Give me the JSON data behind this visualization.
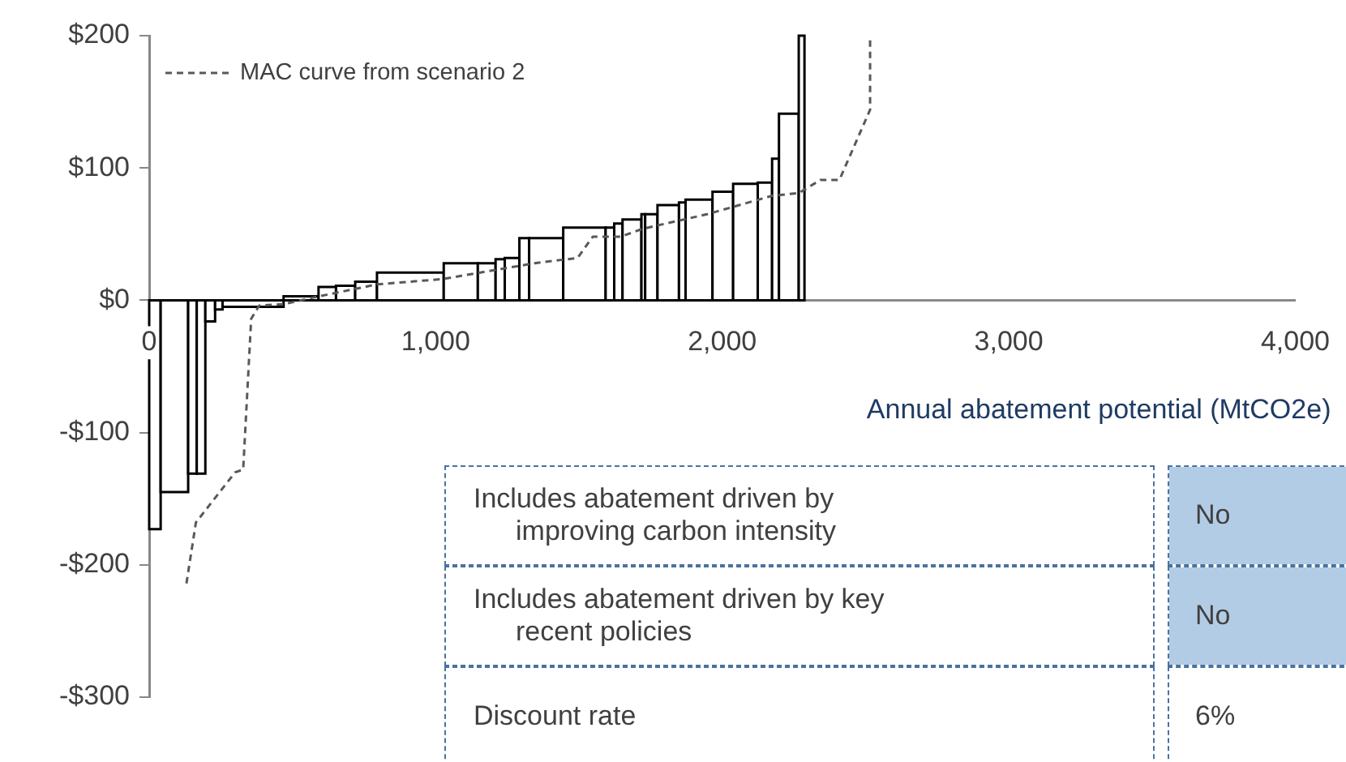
{
  "chart_data": {
    "type": "histogram",
    "xlabel": "Annual abatement potential (MtCO2e)",
    "xlim": [
      0,
      4000
    ],
    "xticks": [
      0,
      {
        "value": 1000,
        "label": "1,000"
      },
      {
        "value": 2000,
        "label": "2,000"
      },
      {
        "value": 3000,
        "label": "3,000"
      },
      {
        "value": 4000,
        "label": "4,000"
      }
    ],
    "ylim": [
      -300,
      200
    ],
    "yticks": [
      {
        "value": -300,
        "label": "-$300"
      },
      {
        "value": -200,
        "label": "-$200"
      },
      {
        "value": -100,
        "label": "-$100"
      },
      {
        "value": 0,
        "label": "$0"
      },
      {
        "value": 100,
        "label": "$100"
      },
      {
        "value": 200,
        "label": "$200"
      }
    ],
    "grid": false,
    "legend": "top left",
    "series": [
      {
        "type": "histogram",
        "color": "#000000",
        "bins": [
          0,
          40,
          136,
          166,
          196,
          230,
          256,
          469,
          591,
          652,
          719,
          795,
          1028,
          1147,
          1209,
          1241,
          1292,
          1326,
          1445,
          1593,
          1623,
          1652,
          1718,
          1731,
          1774,
          1849,
          1872,
          1966,
          2038,
          2124,
          2174,
          2198,
          2267,
          2287
        ],
        "values": [
          -173,
          -145,
          -131,
          -131,
          -16,
          -7,
          -5,
          3,
          10,
          11,
          14,
          21,
          28,
          28,
          31,
          32,
          47,
          47,
          55,
          55,
          58,
          61,
          65,
          65,
          72,
          74,
          76,
          82,
          88,
          89,
          107,
          141,
          200
        ]
      },
      {
        "type": "line",
        "name": "MAC curve from scenario 2",
        "color": "#595959",
        "line_style": "dashed",
        "x": [
          130,
          163,
          300,
          328,
          356,
          384,
          469,
          571,
          795,
          1023,
          1345,
          1495,
          1548,
          1645,
          1722,
          1947,
          2174,
          2267,
          2343,
          2409,
          2516,
          2516
        ],
        "values": [
          -214,
          -168,
          -130,
          -128,
          -14,
          -4,
          -3,
          2,
          12,
          16,
          28,
          32,
          48,
          48,
          54,
          65,
          79,
          81,
          91,
          91,
          144,
          199
        ]
      }
    ],
    "annotations": [
      "Includes abatement driven by improving carbon intensity",
      "No",
      "Includes abatement driven by key recent policies",
      "No",
      "Discount rate",
      "6%"
    ]
  }
}
